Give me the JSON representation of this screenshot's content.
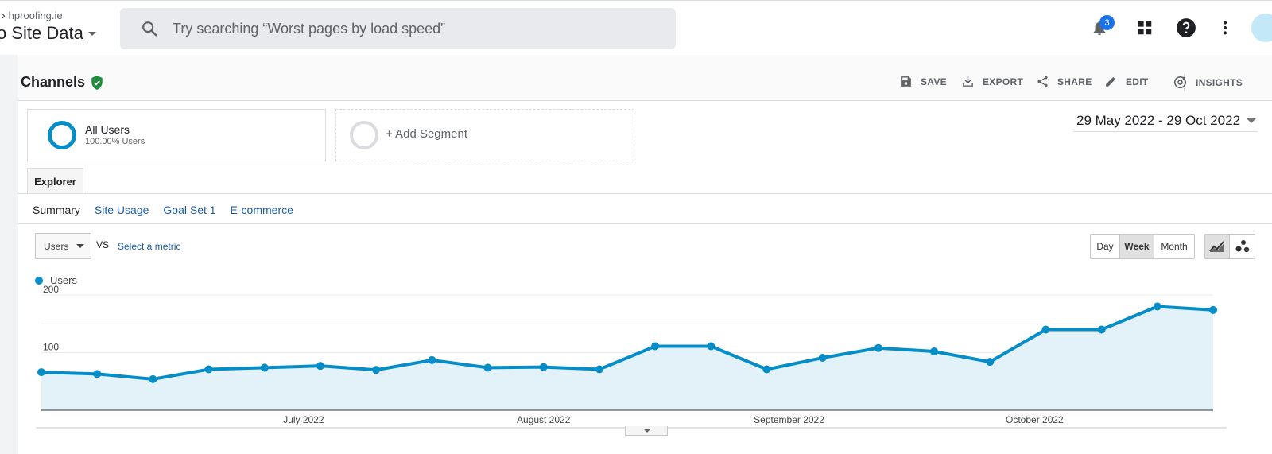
{
  "header": {
    "account_domain": "hproofing.ie",
    "view_name": "o Site Data",
    "search_placeholder": "Try searching “Worst pages by load speed”",
    "notification_count": "3"
  },
  "report": {
    "title": "Channels",
    "actions": [
      {
        "label": "SAVE",
        "icon": "save-icon"
      },
      {
        "label": "EXPORT",
        "icon": "download-icon"
      },
      {
        "label": "SHARE",
        "icon": "share-icon"
      },
      {
        "label": "EDIT",
        "icon": "pencil-icon"
      },
      {
        "label": "INSIGHTS",
        "icon": "insights-icon"
      }
    ]
  },
  "segments": {
    "active_name": "All Users",
    "active_pct": "100.00% Users",
    "add_label": "+ Add Segment"
  },
  "date_range": "29 May 2022 - 29 Oct 2022",
  "tabs": {
    "main": "Explorer",
    "sub": [
      "Summary",
      "Site Usage",
      "Goal Set 1",
      "E-commerce"
    ]
  },
  "controls": {
    "metric": "Users",
    "vs": "VS",
    "select_metric": "Select a metric",
    "granularity": [
      "Day",
      "Week",
      "Month"
    ],
    "selected_granularity": "Week"
  },
  "colors": {
    "series": "#058dc7",
    "area": "#e3f1f8"
  },
  "chart_data": {
    "type": "area",
    "series": [
      {
        "name": "Users",
        "values": [
          66,
          63,
          54,
          71,
          74,
          77,
          70,
          87,
          74,
          75,
          71,
          111,
          111,
          71,
          91,
          108,
          102,
          84,
          140,
          140,
          180,
          174
        ]
      }
    ],
    "x_tick_labels": [
      "July 2022",
      "August 2022",
      "September 2022",
      "October 2022"
    ],
    "y_ticks": [
      100,
      200
    ],
    "ylim": [
      0,
      200
    ],
    "grid": true,
    "legend": "top-left"
  }
}
